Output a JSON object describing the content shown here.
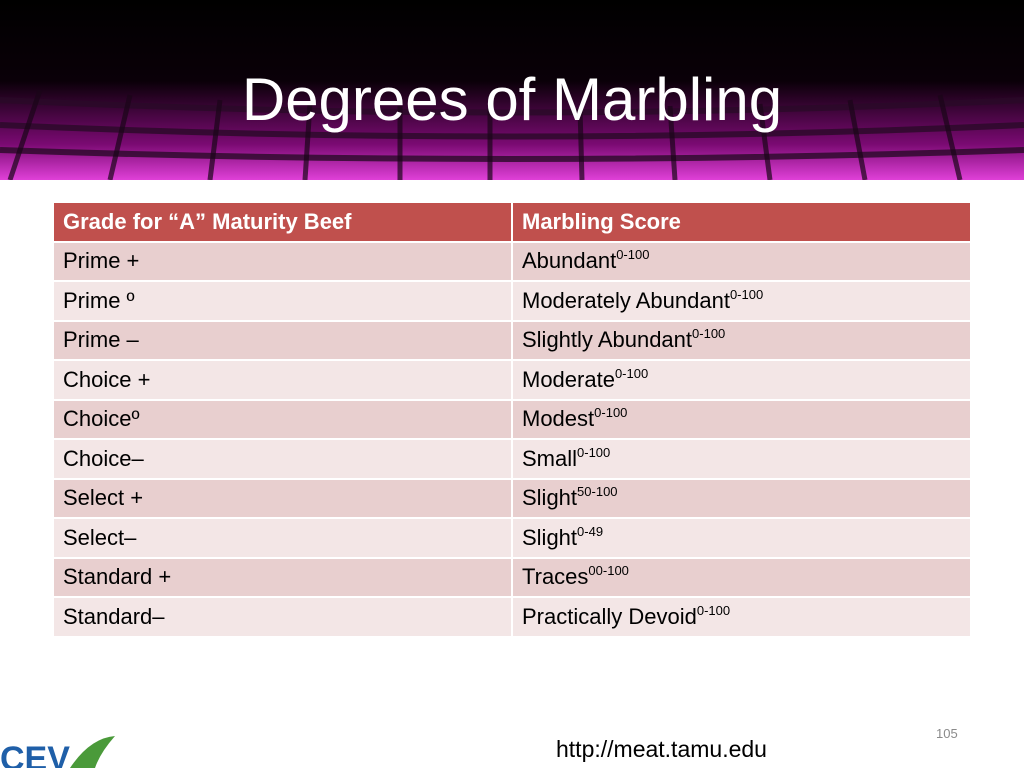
{
  "title": "Degrees of Marbling",
  "table": {
    "header": [
      "Grade for “A” Maturity Beef",
      "Marbling Score"
    ],
    "rows": [
      {
        "grade": "Prime +",
        "score": "Abundant",
        "range": "0-100"
      },
      {
        "grade": "Prime º",
        "score": "Moderately Abundant",
        "range": "0-100"
      },
      {
        "grade": "Prime –",
        "score": "Slightly Abundant",
        "range": "0-100"
      },
      {
        "grade": "Choice +",
        "score": "Moderate",
        "range": "0-100"
      },
      {
        "grade": "Choiceº",
        "score": "Modest",
        "range": "0-100"
      },
      {
        "grade": "Choice–",
        "score": "Small",
        "range": "0-100"
      },
      {
        "grade": "Select +",
        "score": "Slight",
        "range": "50-100"
      },
      {
        "grade": "Select–",
        "score": "Slight",
        "range": "0-49"
      },
      {
        "grade": "Standard +",
        "score": "Traces",
        "range": "00-100"
      },
      {
        "grade": "Standard–",
        "score": "Practically Devoid",
        "range": "0-100"
      }
    ]
  },
  "footer": {
    "url": "http://meat.tamu.edu",
    "page_number": 105,
    "logo": "CEV"
  }
}
